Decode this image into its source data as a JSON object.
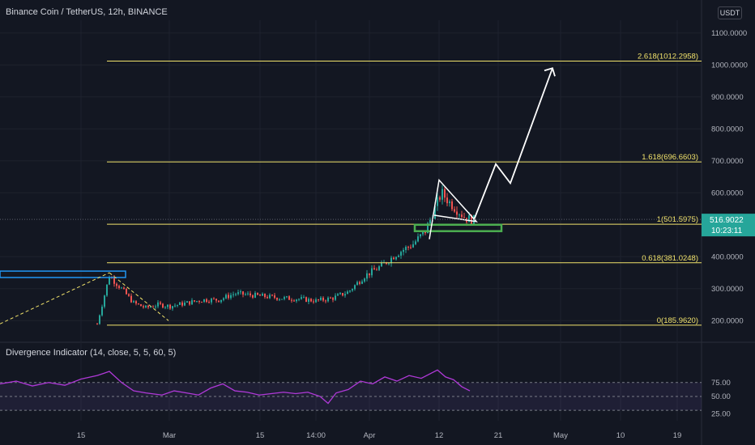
{
  "header": {
    "symbol_line": "Binance Coin / TetherUS, 12h, BINANCE",
    "currency": "USDT"
  },
  "indicator": {
    "title": "Divergence Indicator (14, close, 5, 5, 60, 5)",
    "y_ticks": [
      "75.00",
      "50.00",
      "25.00"
    ]
  },
  "current": {
    "price": "516.9022",
    "countdown": "10:23:11"
  },
  "x_ticks": [
    "15",
    "Mar",
    "15",
    "14:00",
    "Apr",
    "12",
    "21",
    "May",
    "10",
    "19"
  ],
  "y_ticks": [
    "1100.0000",
    "1000.0000",
    "900.0000",
    "800.0000",
    "700.0000",
    "600.0000",
    "400.0000",
    "300.0000",
    "200.0000"
  ],
  "colors": {
    "background": "#131722",
    "up": "#26a69a",
    "down": "#ef5350",
    "fib": "#f2e36b",
    "rsi": "#b039d8",
    "support": "#4caf50",
    "resistance": "#2196f3"
  },
  "chart_data": {
    "type": "candlestick",
    "y_axis": {
      "range": [
        140,
        1140
      ],
      "ticks": [
        1100,
        1000,
        900,
        800,
        700,
        600,
        400,
        300,
        200
      ]
    },
    "fib_levels": [
      {
        "label": "2.618(1012.2958)",
        "value": 1012.2958
      },
      {
        "label": "1.618(696.6603)",
        "value": 696.6603
      },
      {
        "label": "1(501.5975)",
        "value": 501.5975
      },
      {
        "label": "0.618(381.0248)",
        "value": 381.0248
      },
      {
        "label": "0(185.9620)",
        "value": 185.962
      }
    ],
    "price_path": [
      [
        120,
        190
      ],
      [
        135,
        340
      ],
      [
        150,
        300
      ],
      [
        165,
        255
      ],
      [
        180,
        240
      ],
      [
        195,
        250
      ],
      [
        210,
        245
      ],
      [
        230,
        255
      ],
      [
        250,
        265
      ],
      [
        270,
        265
      ],
      [
        290,
        285
      ],
      [
        310,
        280
      ],
      [
        330,
        275
      ],
      [
        350,
        270
      ],
      [
        370,
        268
      ],
      [
        390,
        262
      ],
      [
        410,
        270
      ],
      [
        430,
        290
      ],
      [
        450,
        340
      ],
      [
        470,
        370
      ],
      [
        490,
        410
      ],
      [
        510,
        440
      ],
      [
        525,
        480
      ],
      [
        535,
        540
      ],
      [
        545,
        600
      ],
      [
        555,
        570
      ],
      [
        565,
        545
      ],
      [
        575,
        520
      ],
      [
        585,
        515
      ]
    ],
    "projection_path": [
      [
        585,
        515
      ],
      [
        612,
        690
      ],
      [
        630,
        630
      ],
      [
        682,
        990
      ]
    ],
    "rsi_path": [
      [
        0,
        68
      ],
      [
        20,
        72
      ],
      [
        40,
        65
      ],
      [
        60,
        70
      ],
      [
        80,
        66
      ],
      [
        100,
        75
      ],
      [
        120,
        80
      ],
      [
        135,
        86
      ],
      [
        150,
        70
      ],
      [
        165,
        58
      ],
      [
        180,
        55
      ],
      [
        200,
        52
      ],
      [
        215,
        58
      ],
      [
        230,
        55
      ],
      [
        245,
        52
      ],
      [
        260,
        62
      ],
      [
        275,
        68
      ],
      [
        290,
        58
      ],
      [
        305,
        56
      ],
      [
        320,
        52
      ],
      [
        335,
        54
      ],
      [
        350,
        56
      ],
      [
        365,
        54
      ],
      [
        380,
        56
      ],
      [
        395,
        50
      ],
      [
        405,
        40
      ],
      [
        415,
        55
      ],
      [
        430,
        60
      ],
      [
        445,
        72
      ],
      [
        460,
        68
      ],
      [
        475,
        78
      ],
      [
        490,
        72
      ],
      [
        505,
        80
      ],
      [
        520,
        76
      ],
      [
        530,
        82
      ],
      [
        540,
        88
      ],
      [
        550,
        78
      ],
      [
        560,
        74
      ],
      [
        570,
        64
      ],
      [
        580,
        58
      ]
    ],
    "rsi_range": [
      15,
      100
    ],
    "rsi_band": [
      30,
      70
    ],
    "rsi_mid": 50
  }
}
